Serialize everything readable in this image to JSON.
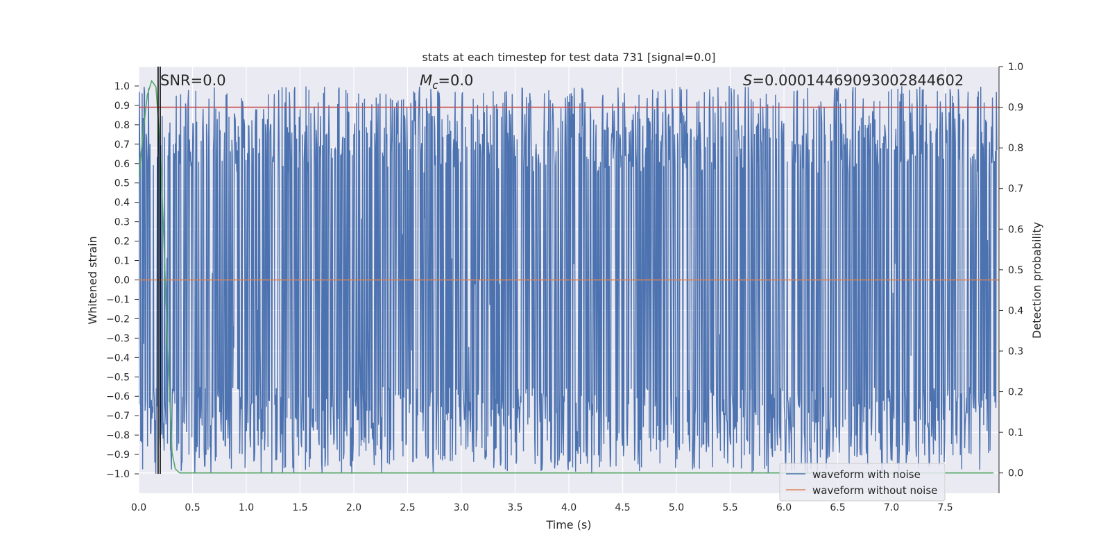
{
  "chart_data": {
    "type": "line",
    "title": "stats at each timestep for test data 731 [signal=0.0]",
    "xlabel": "Time (s)",
    "ylabel": "Whitened strain",
    "y2label": "Detection probability",
    "xlim": [
      0.0,
      8.0
    ],
    "ylim": [
      -1.1,
      1.1
    ],
    "y2lim": [
      -0.05,
      1.0
    ],
    "xticks": [
      "0.0",
      "0.5",
      "1.0",
      "1.5",
      "2.0",
      "2.5",
      "3.0",
      "3.5",
      "4.0",
      "4.5",
      "5.0",
      "5.5",
      "6.0",
      "6.5",
      "7.0",
      "7.5"
    ],
    "yticks": [
      "1.0",
      "0.9",
      "0.8",
      "0.7",
      "0.6",
      "0.5",
      "0.4",
      "0.3",
      "0.2",
      "0.1",
      "0.0",
      "−0.1",
      "−0.2",
      "−0.3",
      "−0.4",
      "−0.5",
      "−0.6",
      "−0.7",
      "−0.8",
      "−0.9",
      "−1.0"
    ],
    "y2ticks": [
      "1.0",
      "0.9",
      "0.8",
      "0.7",
      "0.6",
      "0.5",
      "0.4",
      "0.3",
      "0.2",
      "0.1",
      "0.0"
    ],
    "grid": true,
    "legend_position": "bottom-right",
    "annotations": {
      "snr_name": "SNR",
      "snr_value": "=0.0",
      "mc_name": "M",
      "mc_sub": "c",
      "mc_value": "=0.0",
      "s_name": "S",
      "s_value": "=0.00014469093002844602"
    },
    "series": [
      {
        "name": "waveform with noise",
        "axis": "left",
        "color": "#4c72b0",
        "description_range": [
          -1.0,
          1.0
        ],
        "sample_rate_hint": 400
      },
      {
        "name": "waveform without noise",
        "axis": "left",
        "color": "#dd8452",
        "x": [
          0.0,
          8.0
        ],
        "y": [
          0.0,
          0.0
        ]
      },
      {
        "axis": "right",
        "color": "#55a868",
        "x": [
          0.0,
          0.02,
          0.05,
          0.08,
          0.12,
          0.16,
          0.2,
          0.23,
          0.27,
          0.31,
          0.34,
          0.38,
          0.45,
          1.0,
          2.0,
          3.0,
          4.0,
          5.0,
          6.0,
          7.0,
          7.95
        ],
        "y": [
          0.72,
          0.78,
          0.86,
          0.93,
          0.965,
          0.95,
          0.8,
          0.6,
          0.3,
          0.05,
          0.01,
          0.0,
          0.0,
          0.0,
          0.0,
          0.0,
          0.0,
          0.0,
          0.0,
          0.0,
          0.0
        ]
      },
      {
        "axis": "right",
        "color": "#c44e52",
        "x": [
          0.0,
          8.0
        ],
        "y": [
          0.9,
          0.9
        ]
      }
    ],
    "vlines": [
      {
        "x": 0.18,
        "color": "#000000"
      },
      {
        "x": 0.2,
        "color": "#000000"
      }
    ]
  }
}
